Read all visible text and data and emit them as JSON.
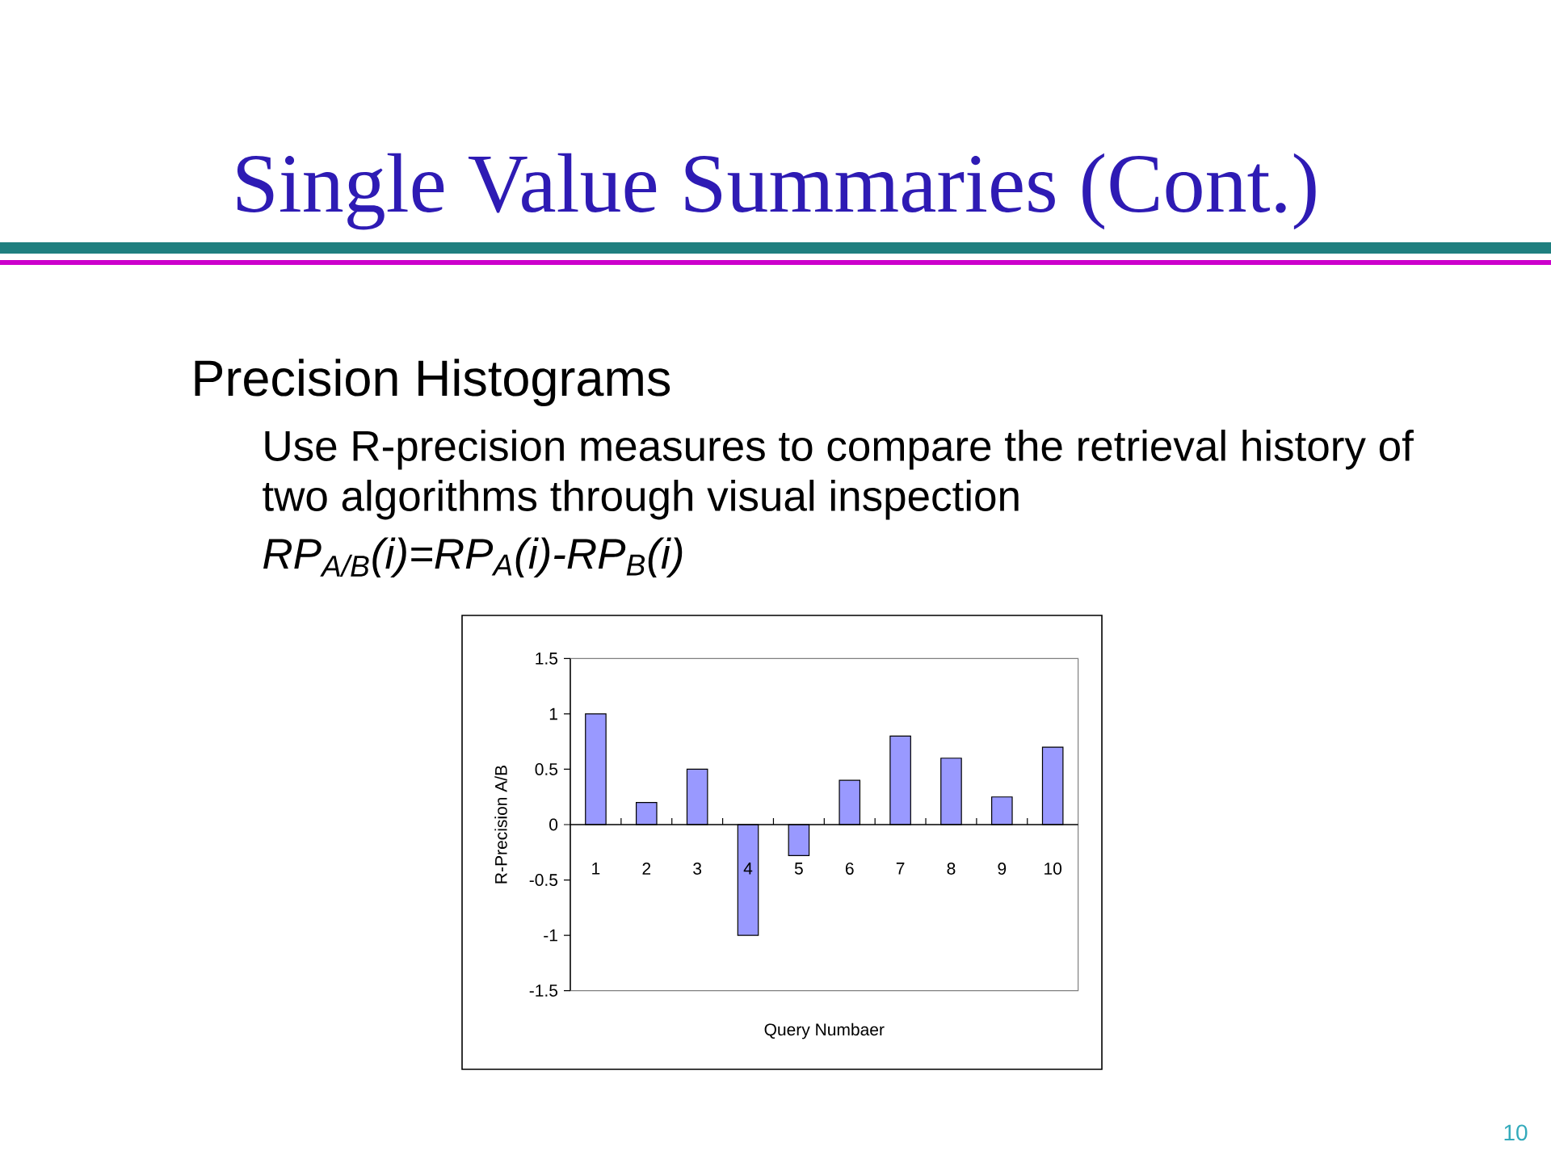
{
  "chart_data": {
    "type": "bar",
    "title": "Single Value Summaries (Cont.)",
    "subtitle": "Precision Histograms",
    "annotations": [
      "Use R-precision measures to compare the retrieval history of two algorithms through visual inspection",
      "RP$_{A/B}$(i)=RP$_{A}$(i)-RP$_{B}$(i)",
      "10"
    ],
    "xlabel": "Query Numbaer",
    "ylabel": "R-Precision A/B",
    "categories": [
      "1",
      "2",
      "3",
      "4",
      "5",
      "6",
      "7",
      "8",
      "9",
      "10"
    ],
    "values": [
      1,
      0.2,
      0.5,
      -1,
      -0.28,
      0.4,
      0.8,
      0.6,
      0.25,
      0.7
    ],
    "color": "#9999ff",
    "ylim": [
      -1.5,
      1.5
    ],
    "yticks": [
      -1.5,
      -1,
      -0.5,
      0,
      0.5,
      1,
      1.5
    ]
  }
}
